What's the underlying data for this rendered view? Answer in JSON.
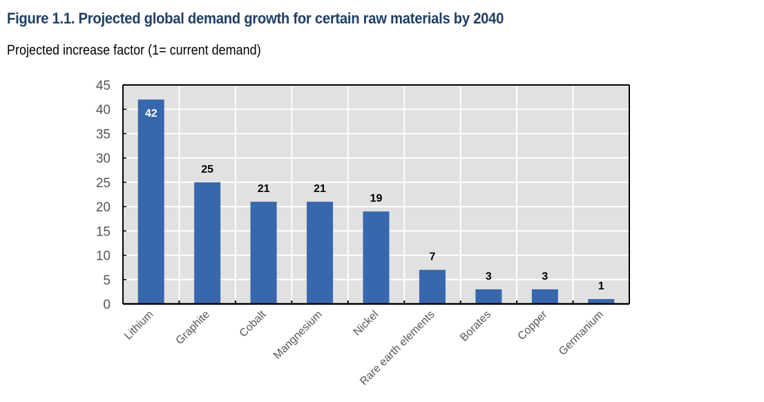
{
  "figure": {
    "title": "Figure 1.1. Projected global demand growth for certain raw materials by 2040",
    "subtitle": "Projected increase factor (1= current demand)"
  },
  "chart_data": {
    "type": "bar",
    "title": "Figure 1.1. Projected global demand growth for certain raw materials by 2040",
    "subtitle": "Projected increase factor (1= current demand)",
    "xlabel": "",
    "ylabel": "Projected increase factor (1= current demand)",
    "categories": [
      "Lithium",
      "Graphite",
      "Cobalt",
      "Mangnesium",
      "Nickel",
      "Rare earth elements",
      "Borates",
      "Copper",
      "Germanium"
    ],
    "values": [
      42,
      25,
      21,
      21,
      19,
      7,
      3,
      3,
      1
    ],
    "data_labels": [
      "42",
      "25",
      "21",
      "21",
      "19",
      "7",
      "3",
      "3",
      "1"
    ],
    "ylim": [
      0,
      45
    ],
    "yticks": [
      0,
      5,
      10,
      15,
      20,
      25,
      30,
      35,
      40,
      45
    ],
    "grid": true,
    "legend": "none",
    "colors": {
      "bar": "#3767ad",
      "plot_background": "#e1e1e1",
      "gridline": "#ffffff",
      "axis": "#000000",
      "title": "#1f3f66"
    }
  }
}
